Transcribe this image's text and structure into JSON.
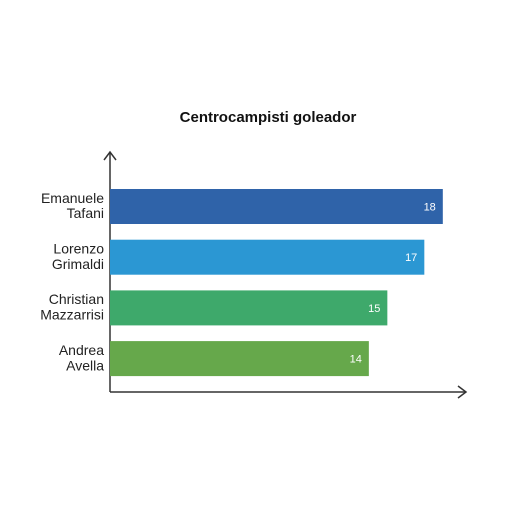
{
  "chart_data": {
    "type": "bar",
    "orientation": "horizontal",
    "title": "Centrocampisti goleador",
    "categories": [
      "Emanuele\nTafani",
      "Lorenzo\nGrimaldi",
      "Christian\nMazzarrisi",
      "Andrea\nAvella"
    ],
    "values": [
      18,
      17,
      15,
      14
    ],
    "colors": [
      "#2f63a9",
      "#2b97d3",
      "#3ea96b",
      "#66a84b"
    ],
    "xlim": [
      0,
      19.2
    ]
  }
}
